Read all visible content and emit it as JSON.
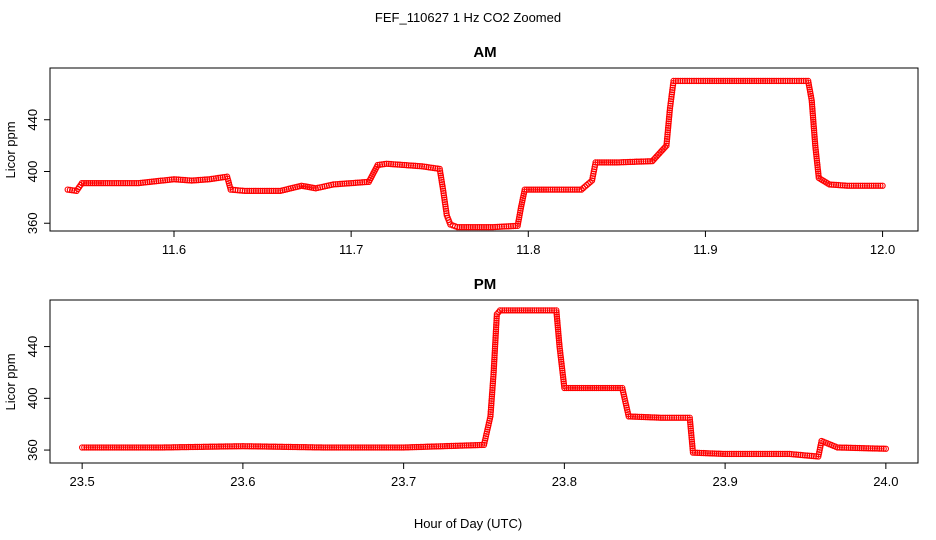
{
  "figure": {
    "title": "FEF_110627  1 Hz CO2 Zoomed",
    "xlabel": "Hour of Day (UTC)"
  },
  "colors": {
    "points": "#ff0000",
    "axes": "#000000",
    "background": "#ffffff"
  },
  "chart_data": [
    {
      "type": "scatter",
      "title": "AM",
      "xlabel": "",
      "ylabel": "Licor ppm",
      "xlim": [
        11.53,
        12.02
      ],
      "ylim": [
        354,
        480
      ],
      "xticks": [
        11.6,
        11.7,
        11.8,
        11.9,
        12.0
      ],
      "xtick_labels": [
        "11.6",
        "11.7",
        "11.8",
        "11.9",
        "12.0"
      ],
      "yticks": [
        360,
        400,
        440
      ],
      "ytick_labels": [
        "360",
        "400",
        "440"
      ],
      "grid": false,
      "marker": "open-circle",
      "x": [
        11.54,
        11.545,
        11.548,
        11.56,
        11.58,
        11.6,
        11.61,
        11.62,
        11.63,
        11.632,
        11.64,
        11.66,
        11.672,
        11.68,
        11.69,
        11.71,
        11.715,
        11.72,
        11.74,
        11.75,
        11.752,
        11.754,
        11.756,
        11.76,
        11.78,
        11.794,
        11.796,
        11.798,
        11.81,
        11.83,
        11.836,
        11.838,
        11.85,
        11.87,
        11.878,
        11.88,
        11.882,
        11.9,
        11.92,
        11.94,
        11.958,
        11.96,
        11.962,
        11.964,
        11.97,
        11.98,
        12.0
      ],
      "y": [
        386,
        385,
        391,
        391,
        391,
        394,
        393,
        394,
        396,
        386,
        385,
        385,
        389,
        387,
        390,
        392,
        405,
        406,
        404,
        402,
        385,
        366,
        359,
        357,
        357,
        358,
        373,
        386,
        386,
        386,
        393,
        407,
        407,
        408,
        420,
        449,
        470,
        470,
        470,
        470,
        470,
        455,
        420,
        395,
        390,
        389,
        389
      ]
    },
    {
      "type": "scatter",
      "title": "PM",
      "xlabel": "",
      "ylabel": "Licor ppm",
      "xlim": [
        23.48,
        24.02
      ],
      "ylim": [
        350,
        476
      ],
      "xticks": [
        23.5,
        23.6,
        23.7,
        23.8,
        23.9,
        24.0
      ],
      "xtick_labels": [
        "23.5",
        "23.6",
        "23.7",
        "23.8",
        "23.9",
        "24.0"
      ],
      "yticks": [
        360,
        400,
        440
      ],
      "ytick_labels": [
        "360",
        "400",
        "440"
      ],
      "grid": false,
      "marker": "open-circle",
      "x": [
        23.5,
        23.55,
        23.6,
        23.65,
        23.7,
        23.75,
        23.754,
        23.756,
        23.758,
        23.76,
        23.78,
        23.795,
        23.797,
        23.8,
        23.82,
        23.836,
        23.84,
        23.86,
        23.878,
        23.88,
        23.9,
        23.94,
        23.958,
        23.96,
        23.97,
        24.0
      ],
      "y": [
        362,
        362,
        363,
        362,
        362,
        364,
        386,
        420,
        465,
        468,
        468,
        468,
        440,
        408,
        408,
        408,
        386,
        385,
        385,
        358,
        357,
        357,
        355,
        367,
        362,
        361
      ]
    }
  ]
}
